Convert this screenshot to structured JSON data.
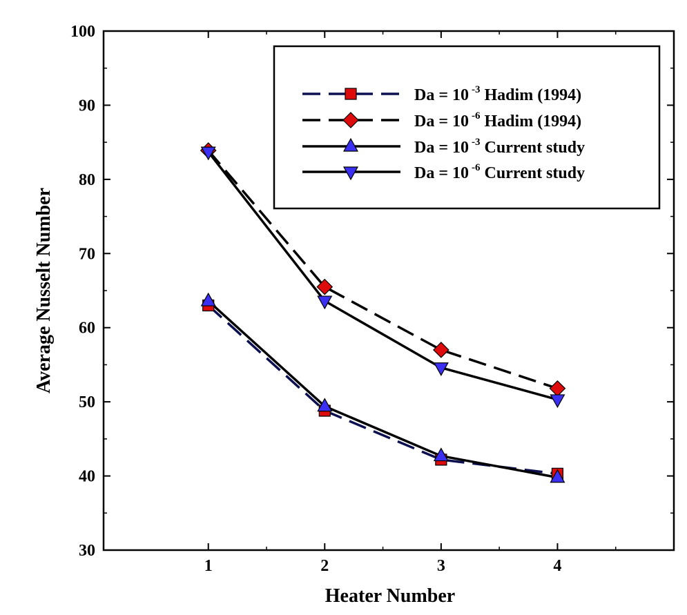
{
  "chart_data": {
    "type": "line",
    "title": "",
    "xlabel": "Heater Number",
    "ylabel": "Average Nusselt Number",
    "x": [
      1,
      2,
      3,
      4
    ],
    "x_ticks": [
      "1",
      "2",
      "3",
      "4"
    ],
    "xlim": [
      0.1,
      5.0
    ],
    "ylim": [
      30,
      100
    ],
    "y_ticks": [
      "30",
      "40",
      "50",
      "60",
      "70",
      "80",
      "90",
      "100"
    ],
    "grid": false,
    "legend_position": "top-right",
    "series": [
      {
        "name": "Da = 10 -3 Hadim (1994)",
        "legend_base": "Da = 10",
        "legend_exp": "-3",
        "legend_rest": "Hadim (1994)",
        "values": [
          63.0,
          48.8,
          42.2,
          40.3
        ],
        "line_style": "dashed",
        "line_color": "#0c1050",
        "marker": "square",
        "marker_color": "#dd0b0b"
      },
      {
        "name": "Da = 10 -6 Hadim (1994)",
        "legend_base": "Da = 10",
        "legend_exp": "-6",
        "legend_rest": "Hadim (1994)",
        "values": [
          83.9,
          65.5,
          57.0,
          51.8
        ],
        "line_style": "dashed",
        "line_color": "#000000",
        "marker": "diamond",
        "marker_color": "#dd0b0b"
      },
      {
        "name": "Da = 10 -3 Current study",
        "legend_base": "Da = 10",
        "legend_exp": "-3",
        "legend_rest": "Current study",
        "values": [
          63.6,
          49.4,
          42.7,
          39.8
        ],
        "line_style": "solid",
        "line_color": "#000000",
        "marker": "triangle-up",
        "marker_color": "#3b30f2"
      },
      {
        "name": "Da = 10 -6 Current study",
        "legend_base": "Da = 10",
        "legend_exp": "-6",
        "legend_rest": "Current study",
        "values": [
          83.7,
          63.6,
          54.6,
          50.3
        ],
        "line_style": "solid",
        "line_color": "#000000",
        "marker": "triangle-down",
        "marker_color": "#3b30f2"
      }
    ]
  }
}
